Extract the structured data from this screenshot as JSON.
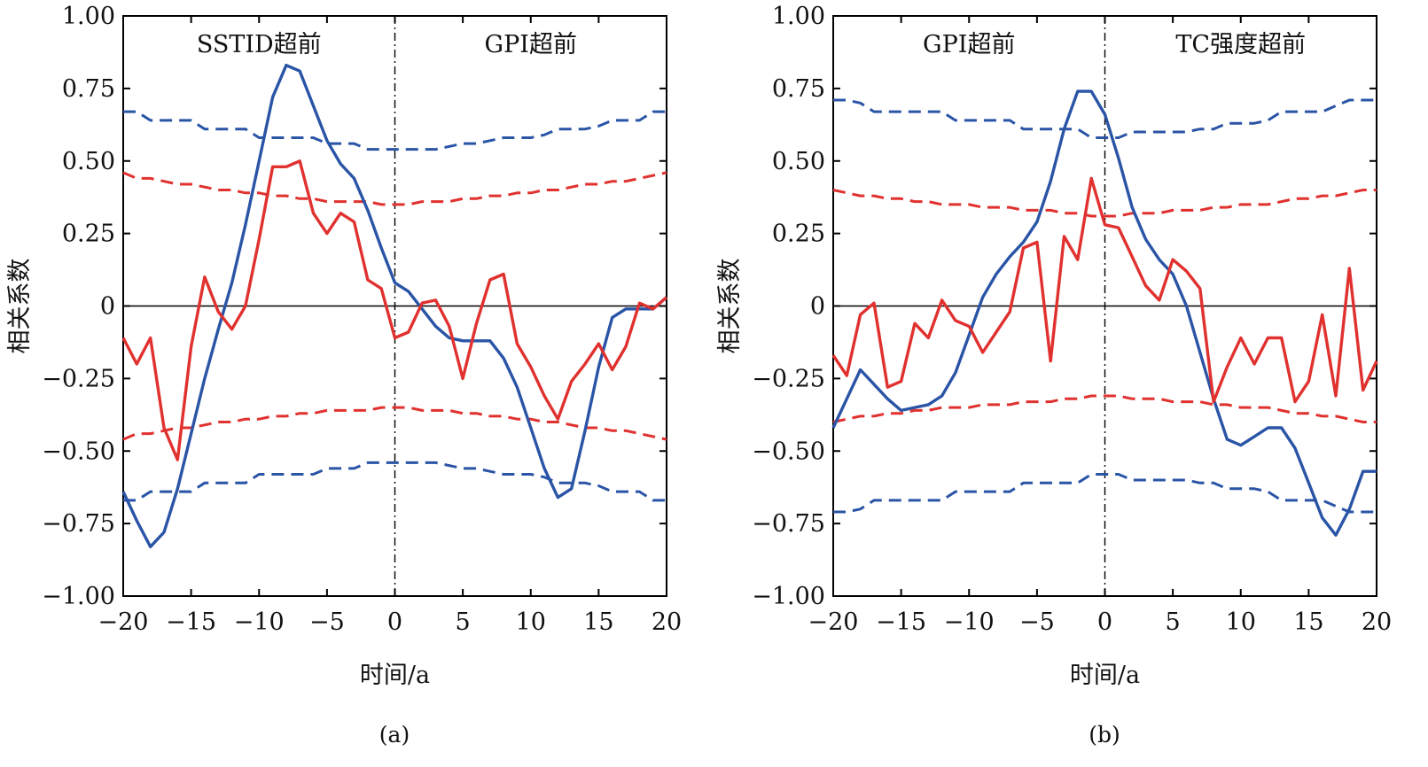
{
  "chart_data": [
    {
      "type": "line",
      "panel_label": "(a)",
      "xlabel": "时间/a",
      "ylabel": "相关系数",
      "xlim": [
        -20,
        20
      ],
      "ylim": [
        -1.0,
        1.0
      ],
      "x_ticks": [
        -20,
        -15,
        -10,
        -5,
        0,
        5,
        10,
        15,
        20
      ],
      "x_tick_labels": [
        "−20",
        "−15",
        "−10",
        "−5",
        "0",
        "5",
        "10",
        "15",
        "20"
      ],
      "y_ticks": [
        1.0,
        0.75,
        0.5,
        0.25,
        0,
        -0.25,
        -0.5,
        -0.75,
        -1.0
      ],
      "y_tick_labels": [
        "1.00",
        "0.75",
        "0.50",
        "0.25",
        "0",
        "−0.25",
        "−0.50",
        "−0.75",
        "−1.00"
      ],
      "annotations": [
        {
          "text": "SSTID超前",
          "x": -10
        },
        {
          "text": "GPI超前",
          "x": 10
        }
      ],
      "colors": {
        "blue": "#2a54a6",
        "red": "#e0312f",
        "zero_line": "#000000",
        "divider": "#000000"
      },
      "x": [
        -20,
        -19,
        -18,
        -17,
        -16,
        -15,
        -14,
        -13,
        -12,
        -11,
        -10,
        -9,
        -8,
        -7,
        -6,
        -5,
        -4,
        -3,
        -2,
        -1,
        0,
        1,
        2,
        3,
        4,
        5,
        6,
        7,
        8,
        9,
        10,
        11,
        12,
        13,
        14,
        15,
        16,
        17,
        18,
        19,
        20
      ],
      "series": [
        {
          "color": "blue",
          "style": "solid",
          "values": [
            -0.64,
            -0.74,
            -0.83,
            -0.78,
            -0.63,
            -0.44,
            -0.25,
            -0.08,
            0.08,
            0.28,
            0.5,
            0.72,
            0.83,
            0.81,
            0.69,
            0.57,
            0.49,
            0.44,
            0.33,
            0.2,
            0.08,
            0.05,
            -0.01,
            -0.07,
            -0.11,
            -0.12,
            -0.12,
            -0.12,
            -0.18,
            -0.28,
            -0.42,
            -0.56,
            -0.66,
            -0.63,
            -0.43,
            -0.21,
            -0.04,
            -0.01,
            -0.01,
            -0.01,
            0.03
          ]
        },
        {
          "color": "red",
          "style": "solid",
          "values": [
            -0.11,
            -0.2,
            -0.11,
            -0.42,
            -0.53,
            -0.14,
            0.1,
            -0.02,
            -0.08,
            0.0,
            0.23,
            0.48,
            0.48,
            0.5,
            0.32,
            0.25,
            0.32,
            0.29,
            0.09,
            0.06,
            -0.11,
            -0.09,
            0.01,
            0.02,
            -0.07,
            -0.25,
            -0.06,
            0.09,
            0.11,
            -0.13,
            -0.21,
            -0.31,
            -0.39,
            -0.26,
            -0.2,
            -0.13,
            -0.22,
            -0.14,
            0.01,
            -0.01,
            0.03
          ]
        },
        {
          "color": "blue",
          "style": "dashed",
          "values": [
            0.67,
            0.67,
            0.64,
            0.64,
            0.64,
            0.64,
            0.61,
            0.61,
            0.61,
            0.61,
            0.58,
            0.58,
            0.58,
            0.58,
            0.58,
            0.56,
            0.56,
            0.56,
            0.54,
            0.54,
            0.54,
            0.54,
            0.54,
            0.54,
            0.55,
            0.56,
            0.56,
            0.57,
            0.58,
            0.58,
            0.58,
            0.59,
            0.61,
            0.61,
            0.61,
            0.62,
            0.64,
            0.64,
            0.64,
            0.67,
            0.67
          ]
        },
        {
          "color": "blue",
          "style": "dashed",
          "values": [
            -0.67,
            -0.67,
            -0.64,
            -0.64,
            -0.64,
            -0.64,
            -0.61,
            -0.61,
            -0.61,
            -0.61,
            -0.58,
            -0.58,
            -0.58,
            -0.58,
            -0.58,
            -0.56,
            -0.56,
            -0.56,
            -0.54,
            -0.54,
            -0.54,
            -0.54,
            -0.54,
            -0.54,
            -0.55,
            -0.56,
            -0.56,
            -0.57,
            -0.58,
            -0.58,
            -0.58,
            -0.59,
            -0.61,
            -0.61,
            -0.61,
            -0.62,
            -0.64,
            -0.64,
            -0.64,
            -0.67,
            -0.67
          ]
        },
        {
          "color": "red",
          "style": "dashed",
          "values": [
            0.46,
            0.44,
            0.44,
            0.43,
            0.42,
            0.42,
            0.41,
            0.4,
            0.4,
            0.39,
            0.39,
            0.38,
            0.38,
            0.37,
            0.37,
            0.36,
            0.36,
            0.36,
            0.36,
            0.35,
            0.35,
            0.35,
            0.36,
            0.36,
            0.36,
            0.37,
            0.37,
            0.38,
            0.38,
            0.39,
            0.39,
            0.4,
            0.4,
            0.41,
            0.42,
            0.42,
            0.43,
            0.43,
            0.44,
            0.45,
            0.46
          ]
        },
        {
          "color": "red",
          "style": "dashed",
          "values": [
            -0.46,
            -0.44,
            -0.44,
            -0.43,
            -0.42,
            -0.42,
            -0.41,
            -0.4,
            -0.4,
            -0.39,
            -0.39,
            -0.38,
            -0.38,
            -0.37,
            -0.37,
            -0.36,
            -0.36,
            -0.36,
            -0.36,
            -0.35,
            -0.35,
            -0.35,
            -0.36,
            -0.36,
            -0.36,
            -0.37,
            -0.37,
            -0.38,
            -0.38,
            -0.39,
            -0.39,
            -0.4,
            -0.4,
            -0.41,
            -0.42,
            -0.42,
            -0.43,
            -0.43,
            -0.44,
            -0.45,
            -0.46
          ]
        }
      ]
    },
    {
      "type": "line",
      "panel_label": "(b)",
      "xlabel": "时间/a",
      "ylabel": "相关系数",
      "xlim": [
        -20,
        20
      ],
      "ylim": [
        -1.0,
        1.0
      ],
      "x_ticks": [
        -20,
        -15,
        -10,
        -5,
        0,
        5,
        10,
        15,
        20
      ],
      "x_tick_labels": [
        "−20",
        "−15",
        "−10",
        "−5",
        "0",
        "5",
        "10",
        "15",
        "20"
      ],
      "y_ticks": [
        1.0,
        0.75,
        0.5,
        0.25,
        0,
        -0.25,
        -0.5,
        -0.75,
        -1.0
      ],
      "y_tick_labels": [
        "1.00",
        "0.75",
        "0.50",
        "0.25",
        "0",
        "−0.25",
        "−0.50",
        "−0.75",
        "−1.00"
      ],
      "annotations": [
        {
          "text": "GPI超前",
          "x": -10
        },
        {
          "text": "TC强度超前",
          "x": 10
        }
      ],
      "colors": {
        "blue": "#2a54a6",
        "red": "#e0312f",
        "zero_line": "#000000",
        "divider": "#000000"
      },
      "x": [
        -20,
        -19,
        -18,
        -17,
        -16,
        -15,
        -14,
        -13,
        -12,
        -11,
        -10,
        -9,
        -8,
        -7,
        -6,
        -5,
        -4,
        -3,
        -2,
        -1,
        0,
        1,
        2,
        3,
        4,
        5,
        6,
        7,
        8,
        9,
        10,
        11,
        12,
        13,
        14,
        15,
        16,
        17,
        18,
        19,
        20
      ],
      "series": [
        {
          "color": "blue",
          "style": "solid",
          "values": [
            -0.42,
            -0.32,
            -0.22,
            -0.27,
            -0.32,
            -0.36,
            -0.35,
            -0.34,
            -0.31,
            -0.23,
            -0.1,
            0.03,
            0.11,
            0.17,
            0.22,
            0.29,
            0.43,
            0.61,
            0.74,
            0.74,
            0.66,
            0.51,
            0.34,
            0.23,
            0.16,
            0.11,
            0.0,
            -0.16,
            -0.32,
            -0.46,
            -0.48,
            -0.45,
            -0.42,
            -0.42,
            -0.49,
            -0.61,
            -0.73,
            -0.79,
            -0.7,
            -0.57,
            -0.57
          ]
        },
        {
          "color": "red",
          "style": "solid",
          "values": [
            -0.17,
            -0.24,
            -0.03,
            0.01,
            -0.28,
            -0.26,
            -0.06,
            -0.11,
            0.02,
            -0.05,
            -0.07,
            -0.16,
            -0.09,
            -0.02,
            0.2,
            0.22,
            -0.19,
            0.24,
            0.16,
            0.44,
            0.28,
            0.27,
            0.17,
            0.07,
            0.02,
            0.16,
            0.12,
            0.06,
            -0.33,
            -0.21,
            -0.11,
            -0.2,
            -0.11,
            -0.11,
            -0.33,
            -0.26,
            -0.03,
            -0.31,
            0.13,
            -0.29,
            -0.19
          ]
        },
        {
          "color": "blue",
          "style": "dashed",
          "values": [
            0.71,
            0.71,
            0.7,
            0.67,
            0.67,
            0.67,
            0.67,
            0.67,
            0.67,
            0.64,
            0.64,
            0.64,
            0.64,
            0.64,
            0.61,
            0.61,
            0.61,
            0.61,
            0.61,
            0.58,
            0.58,
            0.58,
            0.6,
            0.6,
            0.6,
            0.6,
            0.6,
            0.61,
            0.61,
            0.63,
            0.63,
            0.63,
            0.64,
            0.67,
            0.67,
            0.67,
            0.67,
            0.69,
            0.71,
            0.71,
            0.71
          ]
        },
        {
          "color": "blue",
          "style": "dashed",
          "values": [
            -0.71,
            -0.71,
            -0.7,
            -0.67,
            -0.67,
            -0.67,
            -0.67,
            -0.67,
            -0.67,
            -0.64,
            -0.64,
            -0.64,
            -0.64,
            -0.64,
            -0.61,
            -0.61,
            -0.61,
            -0.61,
            -0.61,
            -0.58,
            -0.58,
            -0.58,
            -0.6,
            -0.6,
            -0.6,
            -0.6,
            -0.6,
            -0.61,
            -0.61,
            -0.63,
            -0.63,
            -0.63,
            -0.64,
            -0.67,
            -0.67,
            -0.67,
            -0.67,
            -0.69,
            -0.71,
            -0.71,
            -0.71
          ]
        },
        {
          "color": "red",
          "style": "dashed",
          "values": [
            0.4,
            0.39,
            0.38,
            0.38,
            0.37,
            0.37,
            0.36,
            0.36,
            0.35,
            0.35,
            0.35,
            0.34,
            0.34,
            0.34,
            0.33,
            0.33,
            0.33,
            0.32,
            0.32,
            0.31,
            0.31,
            0.31,
            0.32,
            0.32,
            0.32,
            0.33,
            0.33,
            0.33,
            0.34,
            0.34,
            0.35,
            0.35,
            0.35,
            0.36,
            0.37,
            0.37,
            0.38,
            0.38,
            0.39,
            0.4,
            0.4
          ]
        },
        {
          "color": "red",
          "style": "dashed",
          "values": [
            -0.4,
            -0.39,
            -0.38,
            -0.38,
            -0.37,
            -0.37,
            -0.36,
            -0.36,
            -0.35,
            -0.35,
            -0.35,
            -0.34,
            -0.34,
            -0.34,
            -0.33,
            -0.33,
            -0.33,
            -0.32,
            -0.32,
            -0.31,
            -0.31,
            -0.31,
            -0.32,
            -0.32,
            -0.32,
            -0.33,
            -0.33,
            -0.33,
            -0.34,
            -0.34,
            -0.35,
            -0.35,
            -0.35,
            -0.36,
            -0.37,
            -0.37,
            -0.38,
            -0.38,
            -0.39,
            -0.4,
            -0.4
          ]
        }
      ]
    }
  ]
}
